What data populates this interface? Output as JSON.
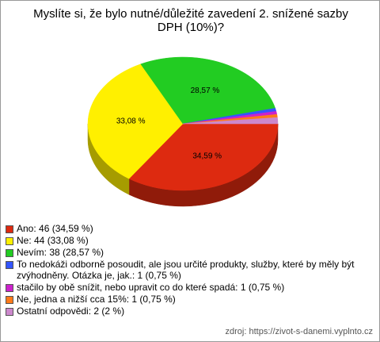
{
  "chart_data": {
    "type": "pie",
    "title": "Myslíte si, že bylo nutné/důležité zavedení 2. snížené sazby DPH (10%)?",
    "categories": [
      "Ano: 46 (34,59 %)",
      "Ne: 44 (33,08 %)",
      "Nevím: 38 (28,57 %)",
      "To nedokáži odborně posoudit, ale jsou určité produkty, služby, které by měly být zvýhodněny. Otázka je, jak.: 1 (0,75 %)",
      "stačilo by obě snížit, nebo upravit co do které spadá: 1 (0,75 %)",
      "Ne, jedna a nižší cca 15%: 1 (0,75 %)",
      "Ostatní odpovědi: 2 (2 %)"
    ],
    "values": [
      34.59,
      33.08,
      28.57,
      0.75,
      0.75,
      0.75,
      1.5
    ],
    "value_labels": [
      "34,59 %",
      "33,08 %",
      "28,57 %",
      null,
      null,
      null,
      null
    ],
    "colors": [
      "#dd2a10",
      "#fff000",
      "#22cc22",
      "#3355ff",
      "#cc22cc",
      "#ff7a1a",
      "#cc88cc"
    ],
    "source": "zdroj: https://zivot-s-danemi.vyplnto.cz"
  }
}
